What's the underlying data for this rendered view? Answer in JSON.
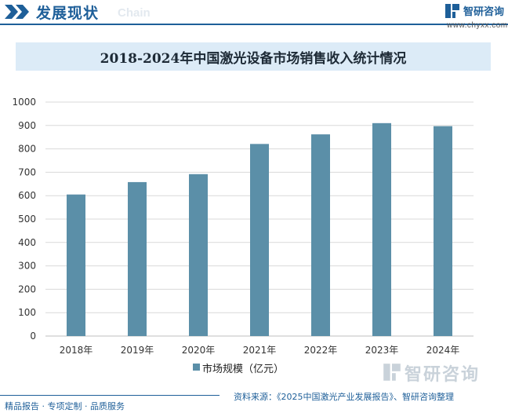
{
  "header": {
    "title": "发展现状",
    "subtitle": "Chain",
    "brand_name": "智研咨询",
    "brand_url": "www.chyxx.com"
  },
  "colors": {
    "bar": "#5b8fa8",
    "accent": "#1e5f99",
    "title_bar": "#dcebf7"
  },
  "chart_data": {
    "type": "bar",
    "title": "2018-2024年中国激光设备市场销售收入统计情况",
    "categories": [
      "2018年",
      "2019年",
      "2020年",
      "2021年",
      "2022年",
      "2023年",
      "2024年"
    ],
    "series": [
      {
        "name": "市场规模（亿元）",
        "values": [
          605,
          658,
          692,
          821,
          862,
          910,
          897
        ]
      }
    ],
    "xlabel": "",
    "ylabel": "",
    "ylim": [
      0,
      1000
    ],
    "yticks": [
      0,
      100,
      200,
      300,
      400,
      500,
      600,
      700,
      800,
      900,
      1000
    ],
    "grid": true,
    "legend": "bottom-center"
  },
  "watermark": {
    "name": "智研咨询"
  },
  "footer": {
    "left": "精品报告 · 专项定制 · 品质服务",
    "source": "资料来源：《2025中国激光产业发展报告》、智研咨询整理"
  }
}
